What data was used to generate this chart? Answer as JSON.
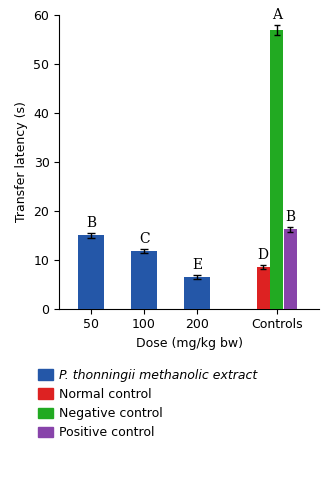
{
  "groups": [
    {
      "x_label": "50",
      "bars": [
        {
          "value": 15.0,
          "error": 0.55,
          "color": "#2457a8",
          "label": "B"
        }
      ]
    },
    {
      "x_label": "100",
      "bars": [
        {
          "value": 11.8,
          "error": 0.45,
          "color": "#2457a8",
          "label": "C"
        }
      ]
    },
    {
      "x_label": "200",
      "bars": [
        {
          "value": 6.5,
          "error": 0.35,
          "color": "#2457a8",
          "label": "E"
        }
      ]
    },
    {
      "x_label": "Controls",
      "bars": [
        {
          "value": 8.5,
          "error": 0.35,
          "color": "#dd2222",
          "label": "D"
        },
        {
          "value": 57.0,
          "error": 1.0,
          "color": "#22aa22",
          "label": "A"
        },
        {
          "value": 16.2,
          "error": 0.45,
          "color": "#8844aa",
          "label": "B"
        }
      ]
    }
  ],
  "ylabel": "Transfer latency (s)",
  "xlabel": "Dose (mg/kg bw)",
  "ylim": [
    0,
    60
  ],
  "yticks": [
    0,
    10,
    20,
    30,
    40,
    50,
    60
  ],
  "single_bar_width": 0.5,
  "ctrl_bar_width": 0.25,
  "ctrl_bar_gap": 0.005,
  "group_positions": [
    0,
    1,
    2,
    3.5
  ],
  "legend_items": [
    {
      "color": "#2457a8",
      "label": "P. thonningii methanolic extract",
      "italic": true
    },
    {
      "color": "#dd2222",
      "label": "Normal control",
      "italic": false
    },
    {
      "color": "#22aa22",
      "label": "Negative control",
      "italic": false
    },
    {
      "color": "#8844aa",
      "label": "Positive control",
      "italic": false
    }
  ],
  "label_fontsize": 9,
  "tick_fontsize": 9,
  "annot_fontsize": 10,
  "legend_fontsize": 9
}
